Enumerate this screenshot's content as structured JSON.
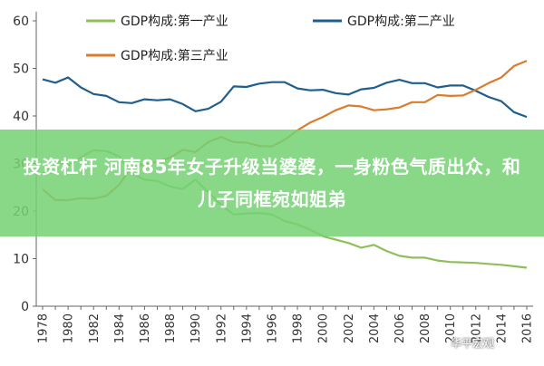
{
  "chart_data": {
    "type": "line",
    "title": "",
    "xlabel": "",
    "ylabel": "",
    "ylim": [
      0,
      60
    ],
    "yticks": [
      0,
      10,
      20,
      30,
      40,
      50,
      60
    ],
    "x": [
      1978,
      1979,
      1980,
      1981,
      1982,
      1983,
      1984,
      1985,
      1986,
      1987,
      1988,
      1989,
      1990,
      1991,
      1992,
      1993,
      1994,
      1995,
      1996,
      1997,
      1998,
      1999,
      2000,
      2001,
      2002,
      2003,
      2004,
      2005,
      2006,
      2007,
      2008,
      2009,
      2010,
      2011,
      2012,
      2013,
      2014,
      2015,
      2016
    ],
    "xticks": [
      "1978",
      "1980",
      "1982",
      "1984",
      "1986",
      "1988",
      "1990",
      "1992",
      "1994",
      "1996",
      "1998",
      "2000",
      "2002",
      "2004",
      "2006",
      "2008",
      "2010",
      "2012",
      "2014",
      "2016"
    ],
    "legend": "top",
    "grid": false,
    "series": [
      {
        "name": "GDP构成:第一产业",
        "color": "#8fbf5a",
        "values": [
          27.7,
          30.7,
          29.6,
          31.3,
          32.8,
          32.6,
          31.5,
          27.9,
          26.6,
          26.3,
          25.2,
          24.6,
          26.6,
          24.0,
          21.3,
          19.3,
          19.5,
          19.6,
          19.3,
          17.9,
          17.2,
          16.1,
          14.7,
          14.0,
          13.3,
          12.3,
          12.9,
          11.6,
          10.6,
          10.2,
          10.2,
          9.6,
          9.3,
          9.2,
          9.1,
          8.9,
          8.7,
          8.4,
          8.1
        ]
      },
      {
        "name": "GDP构成:第二产业",
        "color": "#1f5e8d",
        "values": [
          47.7,
          47.0,
          48.1,
          46.0,
          44.6,
          44.2,
          42.9,
          42.7,
          43.5,
          43.3,
          43.5,
          42.5,
          41.0,
          41.5,
          43.0,
          46.2,
          46.1,
          46.8,
          47.1,
          47.1,
          45.8,
          45.4,
          45.5,
          44.8,
          44.5,
          45.6,
          45.9,
          47.0,
          47.6,
          46.9,
          46.9,
          46.0,
          46.4,
          46.4,
          45.3,
          44.0,
          43.1,
          40.8,
          39.8
        ]
      },
      {
        "name": "GDP构成:第三产业",
        "color": "#d97c2c",
        "values": [
          24.6,
          22.3,
          22.3,
          22.7,
          22.6,
          23.2,
          25.5,
          29.4,
          29.8,
          30.4,
          31.2,
          32.9,
          32.4,
          34.5,
          35.6,
          34.5,
          34.4,
          33.7,
          33.6,
          35.0,
          37.0,
          38.6,
          39.8,
          41.2,
          42.2,
          42.0,
          41.2,
          41.4,
          41.8,
          42.9,
          42.9,
          44.4,
          44.2,
          44.3,
          45.5,
          46.9,
          48.1,
          50.5,
          51.6
        ]
      }
    ]
  },
  "overlay": {
    "title": "投资杠杆 河南85年女子升级当婆婆，一身粉色气质出众，和儿子同框宛如姐弟"
  },
  "watermark": {
    "text": "华平宏观"
  }
}
